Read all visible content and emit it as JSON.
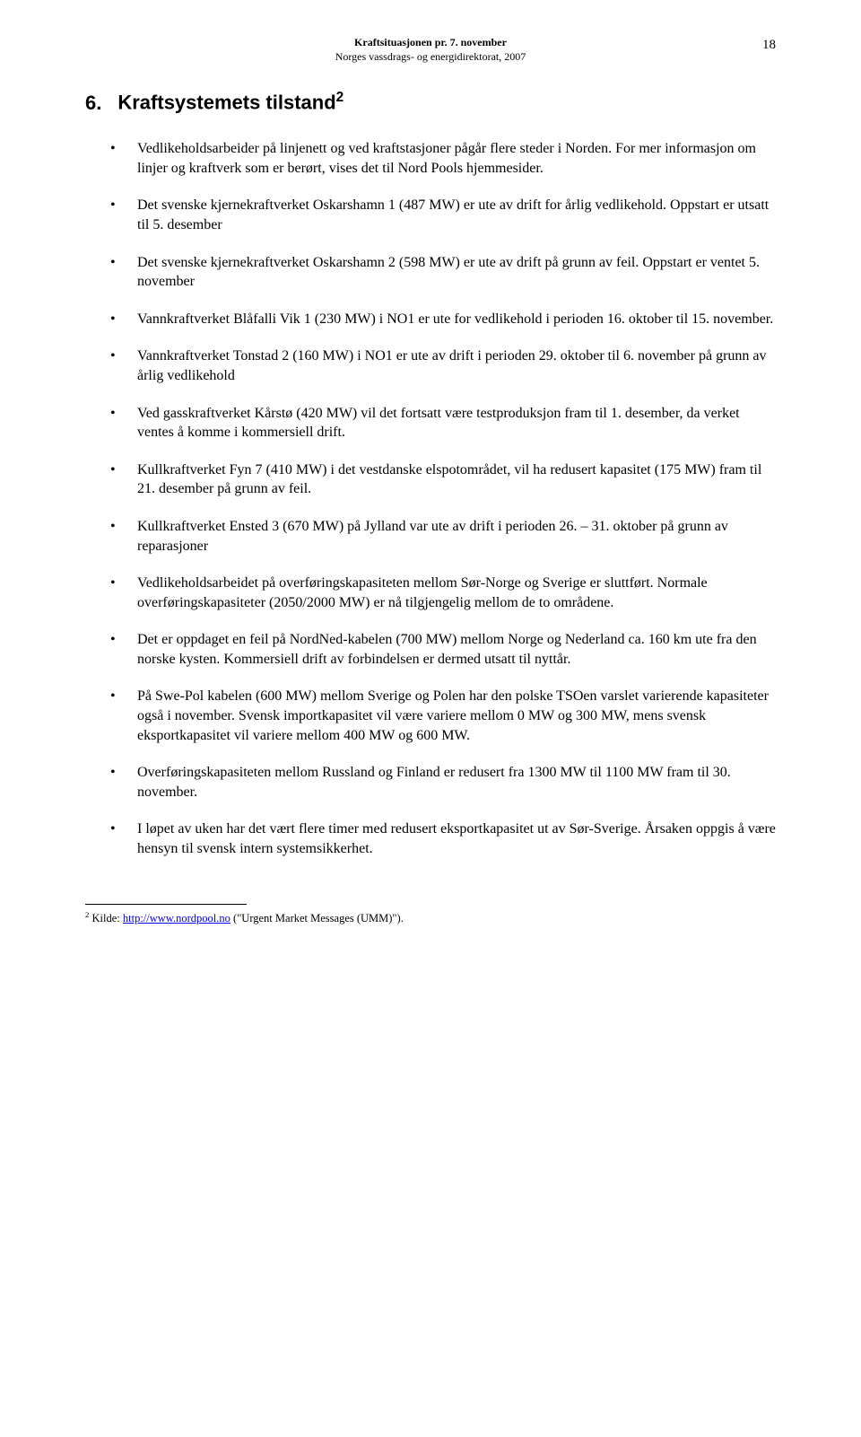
{
  "header": {
    "title": "Kraftsituasjonen pr. 7. november",
    "subtitle": "Norges vassdrags- og energidirektorat, 2007",
    "page_number": "18"
  },
  "section": {
    "number": "6.",
    "title": "Kraftsystemets tilstand",
    "superscript": "2"
  },
  "bullets": [
    "Vedlikeholdsarbeider på linjenett og ved kraftstasjoner pågår flere steder i Norden. For mer informasjon om linjer og kraftverk som er berørt, vises det til Nord Pools hjemmesider.",
    "Det svenske kjernekraftverket Oskarshamn 1 (487 MW) er ute av drift for årlig vedlikehold. Oppstart er utsatt til 5. desember",
    "Det svenske kjernekraftverket Oskarshamn 2 (598 MW) er ute av drift på grunn av feil. Oppstart er ventet 5. november",
    "Vannkraftverket Blåfalli Vik 1 (230 MW) i NO1 er ute for vedlikehold i perioden 16. oktober til 15. november.",
    "Vannkraftverket Tonstad 2 (160 MW) i NO1 er ute av drift i perioden 29. oktober til 6. november på grunn av årlig vedlikehold",
    "Ved gasskraftverket Kårstø (420 MW) vil det fortsatt være testproduksjon fram til 1. desember, da verket ventes å komme i kommersiell drift.",
    "Kullkraftverket Fyn 7 (410 MW) i det vestdanske elspotområdet, vil ha redusert kapasitet (175 MW) fram til 21. desember på grunn av feil.",
    "Kullkraftverket Ensted 3 (670 MW) på Jylland var ute av drift i perioden 26. – 31. oktober på grunn av reparasjoner",
    "Vedlikeholdsarbeidet på overføringskapasiteten mellom Sør-Norge og Sverige er sluttført. Normale overføringskapasiteter (2050/2000 MW) er nå tilgjengelig mellom de to områdene.",
    "Det er oppdaget en feil på NordNed-kabelen (700 MW) mellom Norge og Nederland ca. 160 km ute fra den norske kysten. Kommersiell drift av forbindelsen er dermed utsatt til nyttår.",
    "På Swe-Pol kabelen (600 MW) mellom Sverige og Polen har den polske TSOen varslet varierende kapasiteter også i november. Svensk importkapasitet vil være variere mellom 0 MW og 300 MW, mens svensk eksportkapasitet vil variere mellom 400 MW og 600 MW.",
    "Overføringskapasiteten mellom Russland og Finland er redusert fra 1300 MW til 1100 MW fram til 30. november.",
    "I løpet av uken har det vært flere timer med redusert eksportkapasitet ut av Sør-Sverige. Årsaken oppgis å være hensyn til svensk intern systemsikkerhet."
  ],
  "footnote": {
    "number": "2",
    "prefix": " Kilde: ",
    "link_text": "http://www.nordpool.no",
    "suffix": " (\"Urgent Market Messages (UMM)\")."
  }
}
